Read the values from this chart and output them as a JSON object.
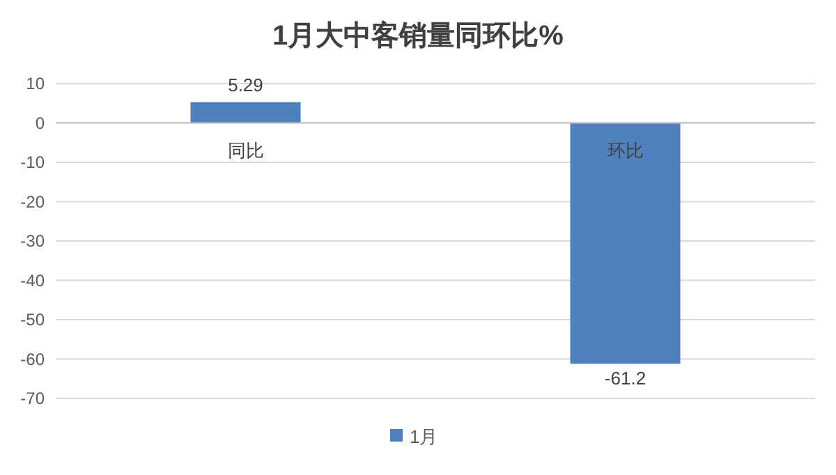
{
  "chart_data": {
    "type": "bar",
    "title": "1月大中客销量同环比%",
    "categories": [
      "同比",
      "环比"
    ],
    "series": [
      {
        "name": "1月",
        "color": "#4f81bd",
        "values": [
          5.29,
          -61.2
        ]
      }
    ],
    "ylim": [
      -70,
      10
    ],
    "yticks": [
      10,
      0,
      -10,
      -20,
      -30,
      -40,
      -50,
      -60,
      -70
    ],
    "grid": "y",
    "legend": "bottom",
    "data_labels": true
  }
}
